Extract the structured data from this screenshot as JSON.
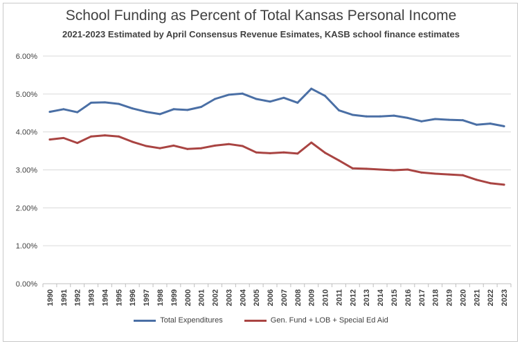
{
  "chart_data": {
    "type": "line",
    "title": "School Funding as Percent of Total Kansas Personal Income",
    "subtitle": "2021-2023 Estimated by April Consensus Revenue Esimates, KASB school finance estimates",
    "xlabel": "",
    "ylabel": "",
    "categories": [
      "1990",
      "1991",
      "1992",
      "1993",
      "1994",
      "1995",
      "1996",
      "1997",
      "1998",
      "1999",
      "2000",
      "2001",
      "2002",
      "2003",
      "2004",
      "2005",
      "2006",
      "2007",
      "2008",
      "2009",
      "2010",
      "2011",
      "2012",
      "2013",
      "2014",
      "2015",
      "2016",
      "2017",
      "2018",
      "2019",
      "2020",
      "2021",
      "2022",
      "2023"
    ],
    "ylim": [
      0,
      6
    ],
    "yticks": [
      "0.00%",
      "1.00%",
      "2.00%",
      "3.00%",
      "4.00%",
      "5.00%",
      "6.00%"
    ],
    "grid": true,
    "legend_position": "bottom",
    "series": [
      {
        "name": "Total Expenditures",
        "color": "#4a6fa5",
        "values": [
          4.53,
          4.6,
          4.52,
          4.77,
          4.78,
          4.74,
          4.62,
          4.53,
          4.47,
          4.6,
          4.58,
          4.66,
          4.87,
          4.98,
          5.01,
          4.87,
          4.8,
          4.9,
          4.77,
          5.14,
          4.95,
          4.57,
          4.45,
          4.41,
          4.41,
          4.43,
          4.37,
          4.28,
          4.34,
          4.32,
          4.31,
          4.19,
          4.22,
          4.15
        ]
      },
      {
        "name": "Gen. Fund + LOB + Special Ed Aid",
        "color": "#a94442",
        "values": [
          3.8,
          3.84,
          3.71,
          3.88,
          3.91,
          3.88,
          3.74,
          3.63,
          3.57,
          3.64,
          3.55,
          3.57,
          3.64,
          3.68,
          3.63,
          3.46,
          3.44,
          3.46,
          3.43,
          3.72,
          3.45,
          3.25,
          3.04,
          3.03,
          3.01,
          2.99,
          3.01,
          2.93,
          2.9,
          2.88,
          2.86,
          2.74,
          2.65,
          2.61
        ]
      }
    ]
  }
}
